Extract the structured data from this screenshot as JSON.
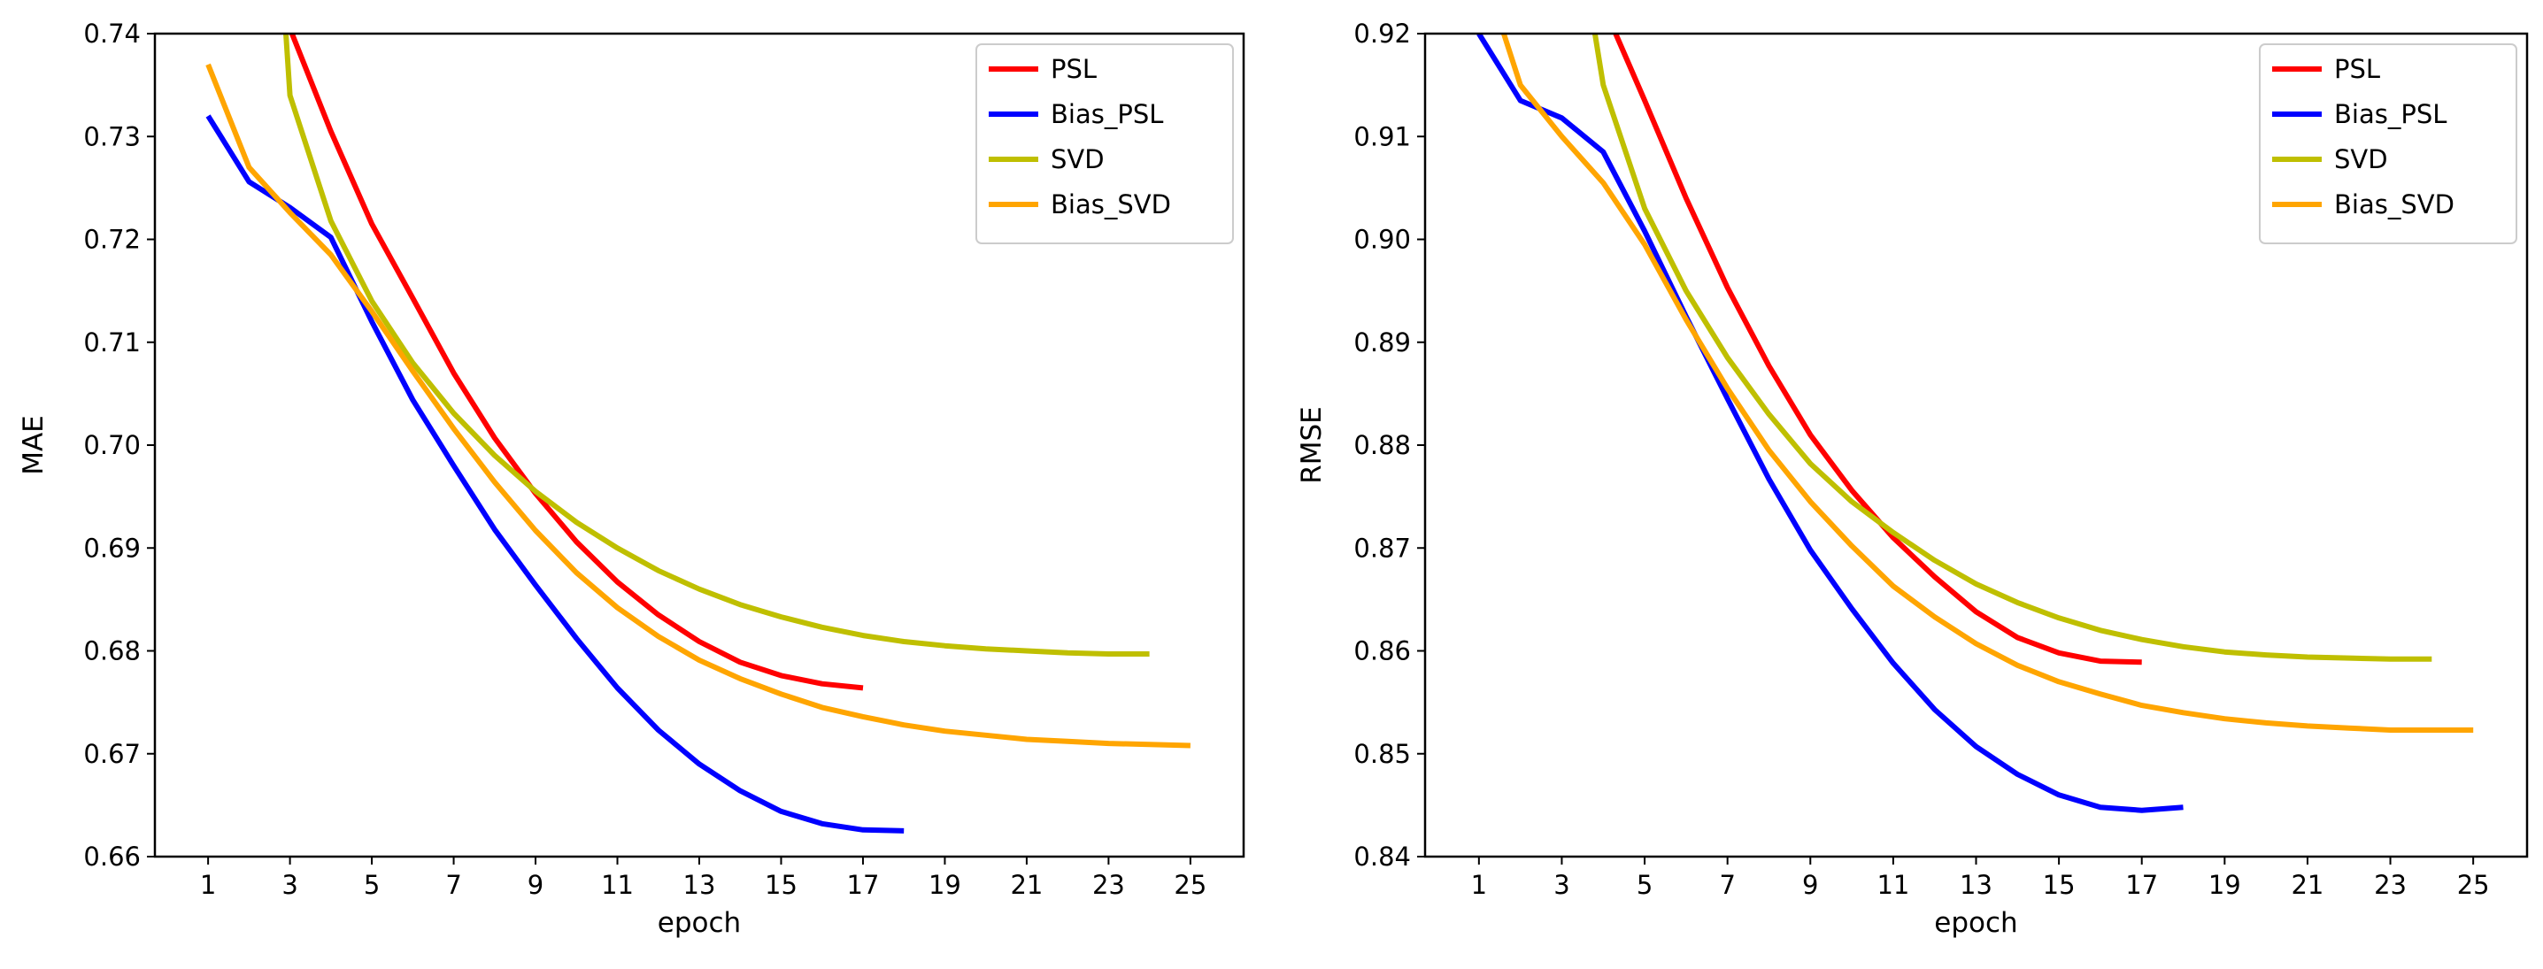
{
  "colors": {
    "PSL": "#ff0000",
    "Bias_PSL": "#0000ff",
    "SVD": "#bfbf00",
    "Bias_SVD": "#ffa500"
  },
  "chart_data": [
    {
      "type": "line",
      "xlabel": "epoch",
      "ylabel": "MAE",
      "xlim": [
        -0.3,
        26.3
      ],
      "ylim": [
        0.66,
        0.74
      ],
      "xticks": [
        1,
        3,
        5,
        7,
        9,
        11,
        13,
        15,
        17,
        19,
        21,
        23,
        25
      ],
      "yticks": [
        0.66,
        0.67,
        0.68,
        0.69,
        0.7,
        0.71,
        0.72,
        0.73,
        0.74
      ],
      "ytick_labels": [
        "0.66",
        "0.67",
        "0.68",
        "0.69",
        "0.70",
        "0.71",
        "0.72",
        "0.73",
        "0.74"
      ],
      "legend_position": "top-right",
      "grid": false,
      "series": [
        {
          "name": "PSL",
          "x": [
            3,
            4,
            5,
            6,
            7,
            8,
            9,
            10,
            11,
            12,
            13,
            14,
            15,
            16,
            17
          ],
          "values": [
            0.7405,
            0.7305,
            0.7215,
            0.7143,
            0.707,
            0.7007,
            0.6953,
            0.6906,
            0.6867,
            0.6835,
            0.6809,
            0.6789,
            0.6776,
            0.6768,
            0.6764
          ]
        },
        {
          "name": "Bias_PSL",
          "x": [
            1,
            2,
            3,
            4,
            5,
            6,
            7,
            8,
            9,
            10,
            11,
            12,
            13,
            14,
            15,
            16,
            17,
            18
          ],
          "values": [
            0.732,
            0.7256,
            0.7231,
            0.7202,
            0.712,
            0.7044,
            0.698,
            0.6918,
            0.6864,
            0.6812,
            0.6764,
            0.6723,
            0.669,
            0.6664,
            0.6644,
            0.6632,
            0.6626,
            0.6625
          ]
        },
        {
          "name": "SVD",
          "x": [
            2.9,
            3,
            4,
            5,
            6,
            7,
            8,
            9,
            10,
            11,
            12,
            13,
            14,
            15,
            16,
            17,
            18,
            19,
            20,
            21,
            22,
            23,
            24
          ],
          "values": [
            0.74,
            0.734,
            0.7218,
            0.714,
            0.708,
            0.7031,
            0.699,
            0.6955,
            0.6925,
            0.69,
            0.6878,
            0.686,
            0.6845,
            0.6833,
            0.6823,
            0.6815,
            0.6809,
            0.6805,
            0.6802,
            0.68,
            0.6798,
            0.6797,
            0.6797
          ]
        },
        {
          "name": "Bias_SVD",
          "x": [
            1,
            2,
            3,
            4,
            5,
            6,
            7,
            8,
            9,
            10,
            11,
            12,
            13,
            14,
            15,
            16,
            17,
            18,
            19,
            20,
            21,
            22,
            23,
            24,
            25
          ],
          "values": [
            0.737,
            0.727,
            0.7226,
            0.7185,
            0.713,
            0.7072,
            0.7016,
            0.6964,
            0.6917,
            0.6876,
            0.6842,
            0.6814,
            0.6791,
            0.6773,
            0.6758,
            0.6745,
            0.6736,
            0.6728,
            0.6722,
            0.6718,
            0.6714,
            0.6712,
            0.671,
            0.6709,
            0.6708
          ]
        }
      ]
    },
    {
      "type": "line",
      "xlabel": "epoch",
      "ylabel": "RMSE",
      "xlim": [
        -0.3,
        26.3
      ],
      "ylim": [
        0.84,
        0.92
      ],
      "xticks": [
        1,
        3,
        5,
        7,
        9,
        11,
        13,
        15,
        17,
        19,
        21,
        23,
        25
      ],
      "yticks": [
        0.84,
        0.85,
        0.86,
        0.87,
        0.88,
        0.89,
        0.9,
        0.91,
        0.92
      ],
      "ytick_labels": [
        "0.84",
        "0.85",
        "0.86",
        "0.87",
        "0.88",
        "0.89",
        "0.90",
        "0.91",
        "0.92"
      ],
      "legend_position": "top-right",
      "grid": false,
      "series": [
        {
          "name": "PSL",
          "x": [
            4.3,
            5,
            6,
            7,
            8,
            9,
            10,
            11,
            12,
            13,
            14,
            15,
            16,
            17
          ],
          "values": [
            0.92,
            0.9135,
            0.904,
            0.8953,
            0.8877,
            0.881,
            0.8756,
            0.871,
            0.8672,
            0.8638,
            0.8613,
            0.8598,
            0.859,
            0.8589
          ]
        },
        {
          "name": "Bias_PSL",
          "x": [
            1,
            2,
            3,
            4,
            5,
            6,
            7,
            8,
            9,
            10,
            11,
            12,
            13,
            14,
            15,
            16,
            17,
            18
          ],
          "values": [
            0.92,
            0.9135,
            0.9118,
            0.9085,
            0.9008,
            0.8925,
            0.8845,
            0.8767,
            0.8698,
            0.8641,
            0.8588,
            0.8543,
            0.8507,
            0.848,
            0.846,
            0.8448,
            0.8445,
            0.8448
          ]
        },
        {
          "name": "SVD",
          "x": [
            3.8,
            4,
            5,
            6,
            7,
            8,
            9,
            10,
            11,
            12,
            13,
            14,
            15,
            16,
            17,
            18,
            19,
            20,
            21,
            22,
            23,
            24
          ],
          "values": [
            0.92,
            0.915,
            0.903,
            0.895,
            0.8885,
            0.883,
            0.8782,
            0.8745,
            0.8715,
            0.8688,
            0.8665,
            0.8647,
            0.8632,
            0.862,
            0.8611,
            0.8604,
            0.8599,
            0.8596,
            0.8594,
            0.8593,
            0.8592,
            0.8592
          ]
        },
        {
          "name": "Bias_SVD",
          "x": [
            1.6,
            2,
            3,
            4,
            5,
            6,
            7,
            8,
            9,
            10,
            11,
            12,
            13,
            14,
            15,
            16,
            17,
            18,
            19,
            20,
            21,
            22,
            23,
            24,
            25
          ],
          "values": [
            0.92,
            0.915,
            0.91,
            0.9055,
            0.8995,
            0.8922,
            0.8855,
            0.8795,
            0.8745,
            0.8702,
            0.8663,
            0.8633,
            0.8607,
            0.8586,
            0.857,
            0.8558,
            0.8547,
            0.854,
            0.8534,
            0.853,
            0.8527,
            0.8525,
            0.8523,
            0.8523,
            0.8523
          ]
        }
      ]
    }
  ]
}
